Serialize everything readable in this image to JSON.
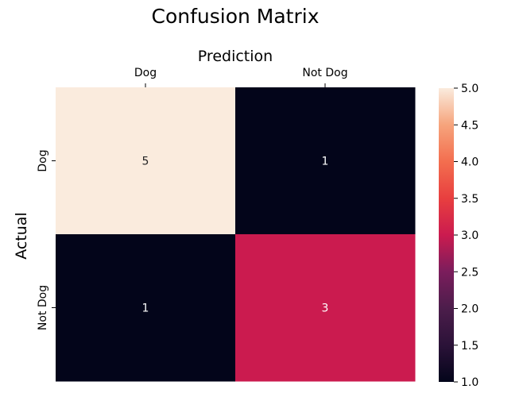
{
  "chart_data": {
    "type": "heatmap",
    "title": "Confusion Matrix",
    "xlabel": "Prediction",
    "ylabel": "Actual",
    "x_categories": [
      "Dog",
      "Not Dog"
    ],
    "y_categories": [
      "Dog",
      "Not Dog"
    ],
    "values": [
      [
        5,
        1
      ],
      [
        1,
        3
      ]
    ],
    "annotations": [
      "5",
      "1",
      "1",
      "3"
    ],
    "x_tick_position": "top",
    "colorbar": {
      "range": [
        1.0,
        5.0
      ],
      "ticks": [
        "5.0",
        "4.5",
        "4.0",
        "3.5",
        "3.0",
        "2.5",
        "2.0",
        "1.5",
        "1.0"
      ],
      "colormap": "rocket",
      "colors": [
        "#03051a",
        "#4c1d4b",
        "#a11a5b",
        "#cb1b4f",
        "#e83f3f",
        "#f6a47c",
        "#faebdd"
      ]
    },
    "grid": false
  }
}
